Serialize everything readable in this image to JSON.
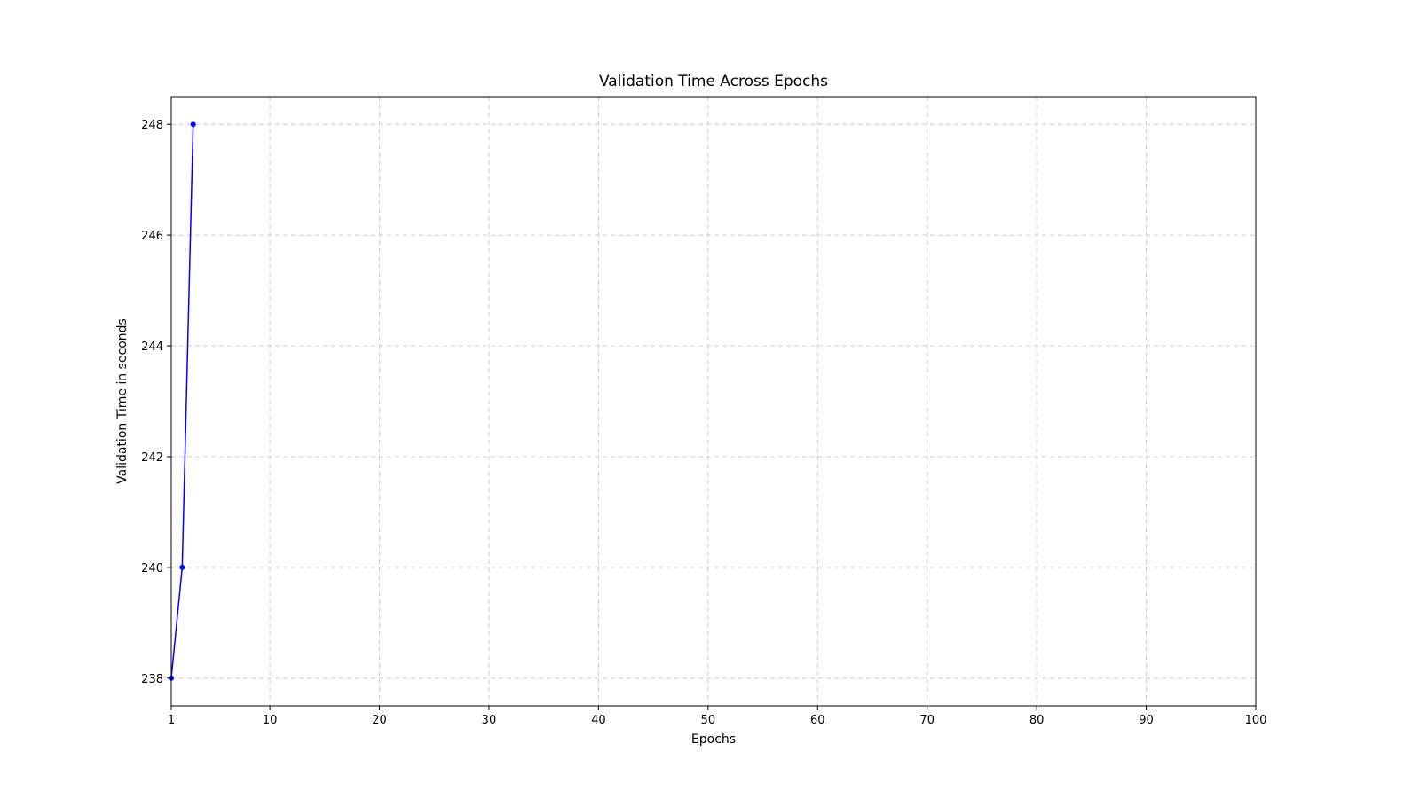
{
  "chart_data": {
    "type": "line",
    "title": "Validation Time Across Epochs",
    "xlabel": "Epochs",
    "ylabel": "Validation Time in seconds",
    "xlim": [
      1,
      100
    ],
    "ylim": [
      237.5,
      248.5
    ],
    "xticks": [
      1,
      10,
      20,
      30,
      40,
      50,
      60,
      70,
      80,
      90,
      100
    ],
    "yticks": [
      238,
      240,
      242,
      244,
      246,
      248
    ],
    "grid": true,
    "series": [
      {
        "color": "#0000ff",
        "marker": "circle",
        "x": [
          1,
          2,
          3
        ],
        "y": [
          238,
          240,
          248
        ]
      }
    ]
  }
}
